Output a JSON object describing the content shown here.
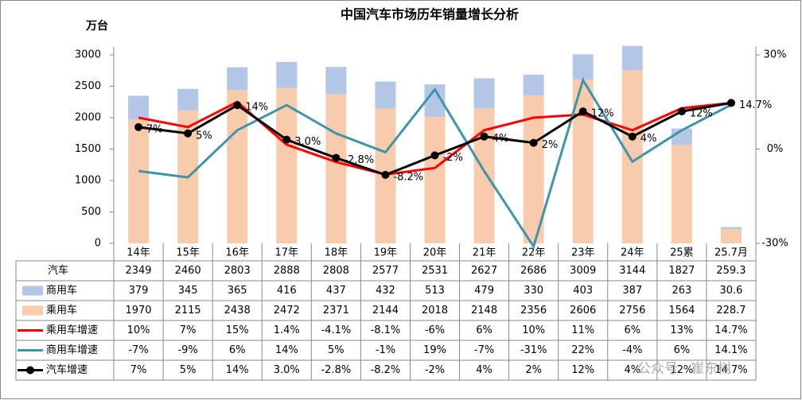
{
  "chart_data": {
    "type": "bar",
    "title": "中国汽车市场历年销量增长分析",
    "y_label": "万台",
    "categories": [
      "14年",
      "15年",
      "16年",
      "17年",
      "18年",
      "19年",
      "20年",
      "21年",
      "22年",
      "23年",
      "24年",
      "25累",
      "25.7月"
    ],
    "ylim": [
      0,
      3000
    ],
    "yticks": [
      0,
      500,
      1000,
      1500,
      2000,
      2500,
      3000
    ],
    "y2lim": [
      -30,
      30
    ],
    "y2ticks": [
      {
        "value": -30,
        "label": "-30%"
      },
      {
        "value": 0,
        "label": "0%"
      },
      {
        "value": 30,
        "label": "30%"
      }
    ],
    "series": [
      {
        "name": "汽车",
        "values": [
          2349,
          2460,
          2803,
          2888,
          2808,
          2577,
          2531,
          2627,
          2686,
          3009,
          3144,
          1827,
          259.3
        ]
      },
      {
        "name": "商用车",
        "type": "bar",
        "color": "#b4c7e7",
        "values": [
          379,
          345,
          365,
          416,
          437,
          432,
          513,
          479,
          330,
          403,
          387,
          263,
          30.6
        ]
      },
      {
        "name": "乘用车",
        "type": "bar",
        "color": "#f8cbad",
        "values": [
          1970,
          2115,
          2438,
          2472,
          2371,
          2144,
          2018,
          2148,
          2356,
          2606,
          2756,
          1564,
          228.7
        ]
      },
      {
        "name": "乘用车增速",
        "type": "line",
        "axis": "y2",
        "color": "#ff0000",
        "values": [
          10,
          7,
          15,
          1.4,
          -4.1,
          -8.1,
          -6,
          6,
          10,
          11,
          6,
          13,
          14.7
        ],
        "value_labels": [
          "10%",
          "7%",
          "15%",
          "1.4%",
          "-4.1%",
          "-8.1%",
          "-6%",
          "6%",
          "10%",
          "11%",
          "6%",
          "13%",
          "14.7%"
        ]
      },
      {
        "name": "商用车增速",
        "type": "line",
        "axis": "y2",
        "color": "#3f94aa",
        "values": [
          -7,
          -9,
          6,
          14,
          5,
          -1,
          19,
          -7,
          -31,
          22,
          -4,
          6,
          14.1
        ],
        "value_labels": [
          "-7%",
          "-9%",
          "6%",
          "14%",
          "5%",
          "-1%",
          "19%",
          "-7%",
          "-31%",
          "22%",
          "-4%",
          "6%",
          "14.1%"
        ]
      },
      {
        "name": "汽车增速",
        "type": "line",
        "axis": "y2",
        "color": "#000000",
        "markers": true,
        "data_labels": true,
        "values": [
          7,
          5,
          14,
          3.0,
          -2.8,
          -8.2,
          -2,
          4,
          2,
          12,
          4,
          12,
          14.7
        ],
        "value_labels": [
          "7%",
          "5%",
          "14%",
          "3.0%",
          "-2.8%",
          "-8.2%",
          "-2%",
          "4%",
          "2%",
          "12%",
          "4%",
          "12%",
          "14.7%"
        ]
      }
    ],
    "watermark": "公众号 · 崔东树"
  }
}
